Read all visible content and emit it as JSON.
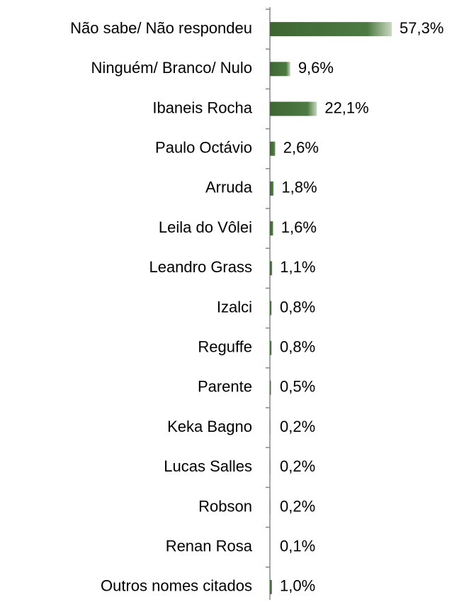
{
  "chart_data": {
    "type": "bar",
    "orientation": "horizontal",
    "categories": [
      "Não sabe/ Não respondeu",
      "Ninguém/ Branco/ Nulo",
      "Ibaneis Rocha",
      "Paulo Octávio",
      "Arruda",
      "Leila do Vôlei",
      "Leandro Grass",
      "Izalci",
      "Reguffe",
      "Parente",
      "Keka Bagno",
      "Lucas Salles",
      "Robson",
      "Renan Rosa",
      "Outros nomes citados"
    ],
    "values": [
      57.3,
      9.6,
      22.1,
      2.6,
      1.8,
      1.6,
      1.1,
      0.8,
      0.8,
      0.5,
      0.2,
      0.2,
      0.2,
      0.1,
      1.0
    ],
    "value_labels": [
      "57,3%",
      "9,6%",
      "22,1%",
      "2,6%",
      "1,8%",
      "1,6%",
      "1,1%",
      "0,8%",
      "0,8%",
      "0,5%",
      "0,2%",
      "0,2%",
      "0,2%",
      "0,1%",
      "1,0%"
    ],
    "color": "#3e6634"
  }
}
